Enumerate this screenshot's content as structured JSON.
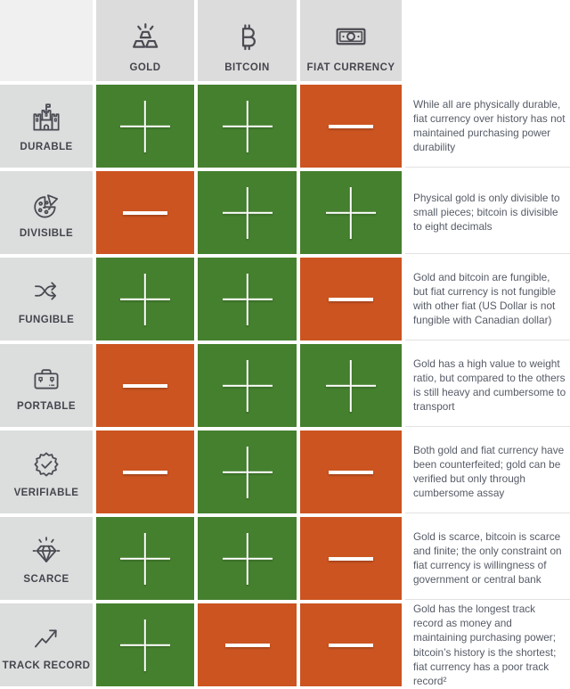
{
  "table": {
    "columns": [
      {
        "label": "GOLD",
        "icon": "gold-bars-icon"
      },
      {
        "label": "BITCOIN",
        "icon": "bitcoin-icon"
      },
      {
        "label": "FIAT CURRENCY",
        "icon": "banknote-icon"
      }
    ],
    "rows": [
      {
        "label": "DURABLE",
        "icon": "castle-icon",
        "values": [
          "plus",
          "plus",
          "minus"
        ],
        "description": "While all are physically durable, fiat currency over history has not maintained purchasing power durability"
      },
      {
        "label": "DIVISIBLE",
        "icon": "pizza-icon",
        "values": [
          "minus",
          "plus",
          "plus"
        ],
        "description": "Physical gold is only divisible to small pieces; bitcoin is divisible to eight decimals"
      },
      {
        "label": "FUNGIBLE",
        "icon": "shuffle-arrows-icon",
        "values": [
          "plus",
          "plus",
          "minus"
        ],
        "description": "Gold and bitcoin are fungible, but fiat currency is not fungible with other fiat (US Dollar is not fungible with Canadian dollar)"
      },
      {
        "label": "PORTABLE",
        "icon": "briefcase-icon",
        "values": [
          "minus",
          "plus",
          "plus"
        ],
        "description": "Gold has a high value to weight ratio, but compared to the others is still heavy and cumbersome to transport"
      },
      {
        "label": "VERIFIABLE",
        "icon": "seal-check-icon",
        "values": [
          "minus",
          "plus",
          "minus"
        ],
        "description": "Both gold and fiat currency have been counterfeited; gold can be verified but only through cumbersome assay"
      },
      {
        "label": "SCARCE",
        "icon": "diamond-icon",
        "values": [
          "plus",
          "plus",
          "minus"
        ],
        "description": "Gold is scarce, bitcoin is scarce and finite; the only constraint on fiat currency is willingness of government or central bank"
      },
      {
        "label": "TRACK RECORD",
        "icon": "trend-up-icon",
        "values": [
          "plus",
          "minus",
          "minus"
        ],
        "description": "Gold has the longest track record as money and maintaining purchasing power; bitcoin’s history is the shortest; fiat currency has a poor track record²"
      }
    ]
  },
  "colors": {
    "positive": "#45802e",
    "negative": "#cc5420",
    "header_bg": "#dcdcdc",
    "row_label_bg": "#dcdddd",
    "corner_bg": "#f1f0f0",
    "label_text": "#45454e",
    "description_text": "#565b66",
    "sign": "#ffffff"
  },
  "chart_data": {
    "type": "table",
    "categories": [
      "Durable",
      "Divisible",
      "Fungible",
      "Portable",
      "Verifiable",
      "Scarce",
      "Track record"
    ],
    "series": [
      {
        "name": "Gold",
        "values": [
          "+",
          "−",
          "+",
          "−",
          "−",
          "+",
          "+"
        ]
      },
      {
        "name": "Bitcoin",
        "values": [
          "+",
          "+",
          "+",
          "+",
          "+",
          "+",
          "−"
        ]
      },
      {
        "name": "Fiat currency",
        "values": [
          "−",
          "+",
          "−",
          "+",
          "−",
          "−",
          "−"
        ]
      }
    ],
    "legend": {
      "plus_color": "#45802e",
      "minus_color": "#cc5420"
    },
    "annotations": [
      "While all are physically durable, fiat currency over history has not maintained purchasing power durability",
      "Physical gold is only divisible to small pieces; bitcoin is divisible to eight decimals",
      "Gold and bitcoin are fungible, but fiat currency is not fungible with other fiat (US Dollar is not fungible with Canadian dollar)",
      "Gold has a high value to weight ratio, but compared to the others is still heavy and cumbersome to transport",
      "Both gold and fiat currency have been counterfeited; gold can be verified but only through cumbersome assay",
      "Gold is scarce, bitcoin is scarce and finite; the only constraint on fiat currency is willingness of government or central bank",
      "Gold has the longest track record as money and maintaining purchasing power; bitcoin’s history is the shortest; fiat currency has a poor track record²"
    ]
  }
}
